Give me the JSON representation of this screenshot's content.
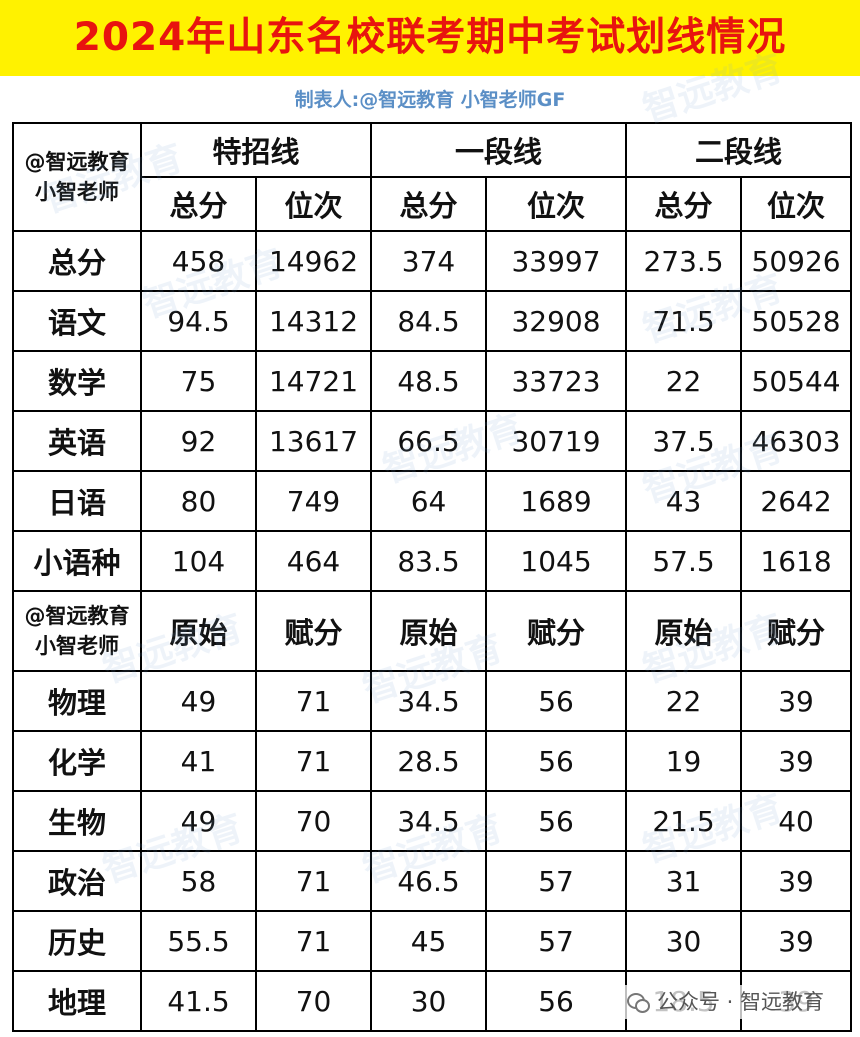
{
  "title": "2024年山东名校联考期中考试划线情况",
  "credit": "制表人:@智远教育 小智老师GF",
  "corner_label": {
    "line1": "@智远教育",
    "line2": "小智老师"
  },
  "bands": [
    "特招线",
    "一段线",
    "二段线"
  ],
  "score_headers": [
    "总分",
    "位次"
  ],
  "subject_headers": [
    "原始",
    "赋分"
  ],
  "score_rows": [
    {
      "subject": "总分",
      "values": [
        "458",
        "14962",
        "374",
        "33997",
        "273.5",
        "50926"
      ]
    },
    {
      "subject": "语文",
      "values": [
        "94.5",
        "14312",
        "84.5",
        "32908",
        "71.5",
        "50528"
      ]
    },
    {
      "subject": "数学",
      "values": [
        "75",
        "14721",
        "48.5",
        "33723",
        "22",
        "50544"
      ]
    },
    {
      "subject": "英语",
      "values": [
        "92",
        "13617",
        "66.5",
        "30719",
        "37.5",
        "46303"
      ]
    },
    {
      "subject": "日语",
      "values": [
        "80",
        "749",
        "64",
        "1689",
        "43",
        "2642"
      ]
    },
    {
      "subject": "小语种",
      "values": [
        "104",
        "464",
        "83.5",
        "1045",
        "57.5",
        "1618"
      ]
    }
  ],
  "subject_rows": [
    {
      "subject": "物理",
      "values": [
        "49",
        "71",
        "34.5",
        "56",
        "22",
        "39"
      ]
    },
    {
      "subject": "化学",
      "values": [
        "41",
        "71",
        "28.5",
        "56",
        "19",
        "39"
      ]
    },
    {
      "subject": "生物",
      "values": [
        "49",
        "70",
        "34.5",
        "56",
        "21.5",
        "40"
      ]
    },
    {
      "subject": "政治",
      "values": [
        "58",
        "71",
        "46.5",
        "57",
        "31",
        "39"
      ]
    },
    {
      "subject": "历史",
      "values": [
        "55.5",
        "71",
        "45",
        "57",
        "30",
        "39"
      ]
    },
    {
      "subject": "地理",
      "values": [
        "41.5",
        "70",
        "30",
        "56",
        "18.5",
        "39"
      ]
    }
  ],
  "watermark": "智远教育",
  "footer": {
    "icon": "wechat-icon",
    "text": "公众号 · 智远教育"
  },
  "colors": {
    "title_bg": "#fff200",
    "title_text": "#e8140f",
    "accent_blue": "#5b8fc6"
  }
}
